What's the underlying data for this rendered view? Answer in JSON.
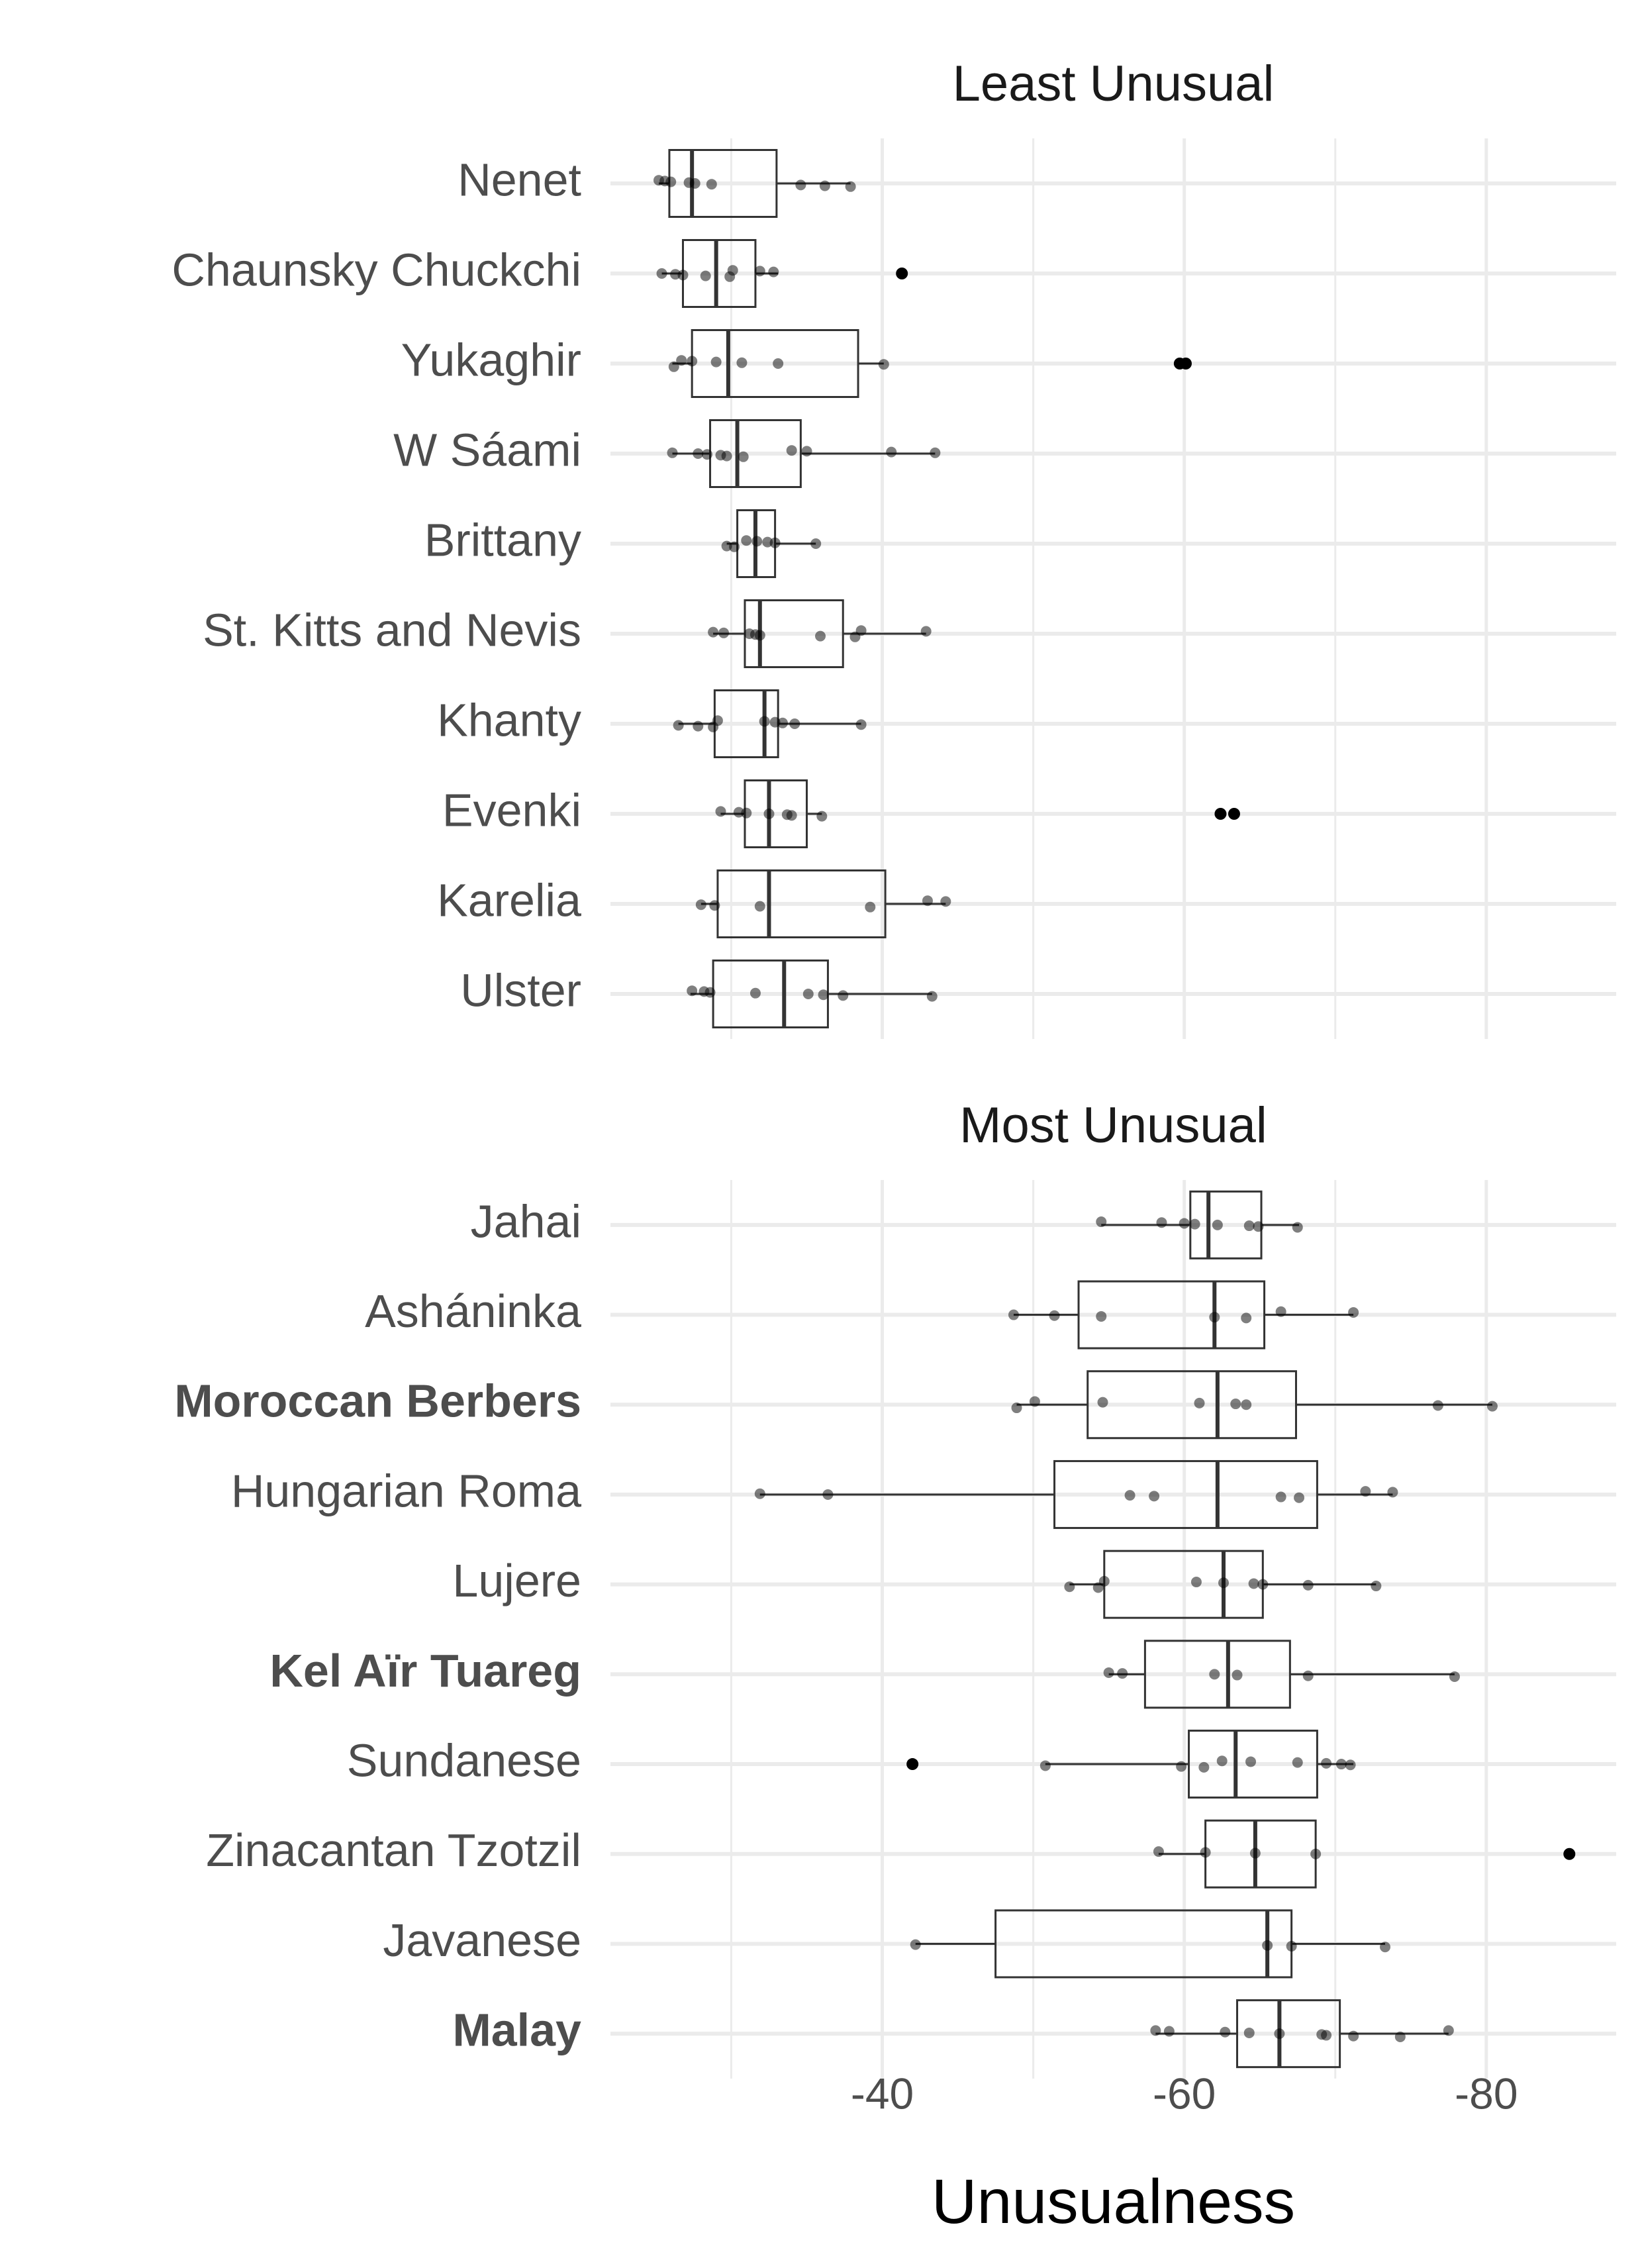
{
  "chart_data": [
    {
      "type": "boxplot",
      "title": "Least Unusual",
      "categories": [
        "Nenet",
        "Chaunsky Chuckchi",
        "Yukaghir",
        "W Sáami",
        "Brittany",
        "St. Kitts and Nevis",
        "Khanty",
        "Evenki",
        "Karelia",
        "Ulster"
      ],
      "bold": [
        false,
        false,
        false,
        false,
        false,
        false,
        false,
        false,
        false,
        false
      ],
      "stats": [
        [
          -25.2,
          -25.9,
          -27.4,
          -33.0,
          -37.9
        ],
        [
          -25.4,
          -26.8,
          -29.0,
          -31.6,
          -33.1
        ],
        [
          -26.1,
          -27.4,
          -29.8,
          -38.4,
          -40.1
        ],
        [
          -26.1,
          -28.6,
          -30.4,
          -34.6,
          -43.5
        ],
        [
          -29.7,
          -30.4,
          -31.6,
          -32.9,
          -35.6
        ],
        [
          -28.8,
          -30.9,
          -31.9,
          -37.4,
          -42.9
        ],
        [
          -26.5,
          -28.9,
          -32.2,
          -33.1,
          -38.6
        ],
        [
          -29.3,
          -30.9,
          -32.5,
          -35.0,
          -36.0
        ],
        [
          -28.0,
          -29.1,
          -32.5,
          -40.2,
          -44.2
        ],
        [
          -27.3,
          -28.8,
          -33.5,
          -36.4,
          -43.3
        ]
      ],
      "outliers": [
        [],
        [
          -41.3
        ],
        [
          -59.7,
          -60.1
        ],
        [],
        [],
        [],
        [],
        [
          -62.4,
          -63.3
        ],
        [],
        []
      ],
      "points": [
        [
          -25.2,
          -25.6,
          -26.0,
          -27.2,
          -27.6,
          -28.7,
          -34.6,
          -36.2,
          -37.9
        ],
        [
          -25.4,
          -26.3,
          -26.8,
          -28.3,
          -29.9,
          -30.1,
          -31.9,
          -32.8
        ],
        [
          -26.2,
          -26.7,
          -27.4,
          -29.0,
          -30.7,
          -33.1,
          -40.1
        ],
        [
          -26.1,
          -27.8,
          -28.4,
          -29.3,
          -29.7,
          -30.8,
          -34.0,
          -35.0,
          -40.6,
          -43.5
        ],
        [
          -29.7,
          -30.2,
          -31.0,
          -31.7,
          -32.4,
          -32.9,
          -35.6
        ],
        [
          -28.8,
          -29.5,
          -31.2,
          -31.6,
          -31.9,
          -35.9,
          -38.2,
          -38.6,
          -42.9
        ],
        [
          -26.5,
          -27.8,
          -28.8,
          -29.1,
          -32.2,
          -32.9,
          -33.4,
          -34.2,
          -38.6
        ],
        [
          -29.3,
          -30.5,
          -31.0,
          -32.5,
          -33.7,
          -34.0,
          -36.0
        ],
        [
          -28.0,
          -28.9,
          -31.9,
          -39.2,
          -43.0,
          -44.2
        ],
        [
          -27.4,
          -28.2,
          -28.6,
          -31.6,
          -35.1,
          -36.1,
          -37.4,
          -43.3
        ]
      ],
      "xlim": [
        -22,
        -88.6
      ],
      "xticks": [
        -40,
        -60,
        -80
      ],
      "minor_xticks": [
        -30,
        -50,
        -70
      ],
      "grid": true,
      "box_color": "#333333",
      "point_color": "#000000"
    },
    {
      "type": "boxplot",
      "title": "Most Unusual",
      "x_label": "Unusualness",
      "categories": [
        "Jahai",
        "Asháninka",
        "Moroccan Berbers",
        "Hungarian Roma",
        "Lujere",
        "Kel Aïr Tuareg",
        "Sundanese",
        "Zinacantan Tzotzil",
        "Javanese",
        "Malay"
      ],
      "bold": [
        false,
        false,
        true,
        false,
        false,
        true,
        false,
        false,
        false,
        true
      ],
      "stats": [
        [
          -54.5,
          -60.4,
          -61.6,
          -65.1,
          -67.6
        ],
        [
          -48.7,
          -53.0,
          -62.0,
          -65.3,
          -71.2
        ],
        [
          -48.9,
          -53.6,
          -62.2,
          -67.4,
          -80.4
        ],
        [
          -31.9,
          -51.4,
          -62.2,
          -68.8,
          -73.8
        ],
        [
          -52.4,
          -54.7,
          -62.6,
          -65.2,
          -72.7
        ],
        [
          -55.0,
          -57.4,
          -62.9,
          -67.0,
          -77.9
        ],
        [
          -50.8,
          -60.3,
          -63.4,
          -68.8,
          -71.2
        ],
        [
          -58.3,
          -61.4,
          -64.7,
          -68.7,
          -68.7
        ],
        [
          -42.2,
          -47.5,
          -65.5,
          -67.1,
          -73.3
        ],
        [
          -58.1,
          -63.5,
          -66.3,
          -70.3,
          -77.5
        ]
      ],
      "outliers": [
        [],
        [],
        [],
        [],
        [],
        [],
        [
          -42.0
        ],
        [
          -85.5
        ],
        [],
        []
      ],
      "points": [
        [
          -54.5,
          -58.5,
          -60.0,
          -60.7,
          -62.2,
          -64.3,
          -64.9,
          -67.5
        ],
        [
          -48.7,
          -51.4,
          -54.5,
          -62.0,
          -64.1,
          -66.4,
          -71.2
        ],
        [
          -48.9,
          -50.1,
          -54.6,
          -61.0,
          -63.4,
          -64.1,
          -76.8,
          -80.4
        ],
        [
          -31.9,
          -36.4,
          -56.4,
          -58.0,
          -66.4,
          -67.6,
          -72.0,
          -73.8
        ],
        [
          -52.4,
          -54.3,
          -54.7,
          -60.8,
          -62.6,
          -64.6,
          -65.2,
          -68.2,
          -72.7
        ],
        [
          -55.0,
          -55.9,
          -62.0,
          -63.5,
          -68.2,
          -77.9
        ],
        [
          -50.8,
          -59.8,
          -61.3,
          -62.5,
          -64.4,
          -67.5,
          -69.4,
          -70.4,
          -71.0
        ],
        [
          -58.3,
          -61.4,
          -64.7,
          -68.7
        ],
        [
          -42.2,
          -65.5,
          -67.1,
          -73.3
        ],
        [
          -58.1,
          -59.0,
          -62.7,
          -64.3,
          -66.3,
          -69.1,
          -69.4,
          -71.2,
          -74.3,
          -77.5
        ]
      ],
      "xlim": [
        -22,
        -88.6
      ],
      "xticks": [
        -40,
        -60,
        -80
      ],
      "minor_xticks": [
        -30,
        -50,
        -70
      ],
      "grid": true,
      "box_color": "#333333",
      "point_color": "#000000"
    }
  ]
}
